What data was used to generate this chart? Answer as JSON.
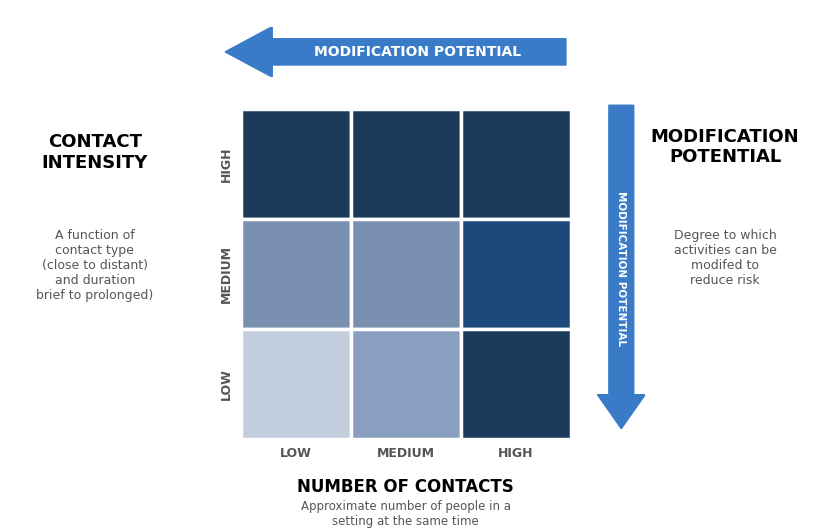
{
  "grid_colors": [
    [
      "#1b3a5c",
      "#1b3a5c",
      "#1b3a5c"
    ],
    [
      "#7a90b0",
      "#7a90b0",
      "#1b4a7a"
    ],
    [
      "#c2cede",
      "#8a9fc0",
      "#1b3a5c"
    ]
  ],
  "row_labels": [
    "HIGH",
    "MEDIUM",
    "LOW"
  ],
  "col_labels": [
    "LOW",
    "MEDIUM",
    "HIGH"
  ],
  "x_axis_title": "NUMBER OF CONTACTS",
  "x_axis_subtitle": "Approximate number of people in a\nsetting at the same time",
  "left_title": "CONTACT\nINTENSITY",
  "left_subtitle": "A function of\ncontact type\n(close to distant)\nand duration\nbrief to prolonged)",
  "top_arrow_label": "MODIFICATION POTENTIAL",
  "right_arrow_label": "MODIFICATION POTENTIAL",
  "right_title": "MODIFICATION\nPOTENTIAL",
  "right_subtitle": "Degree to which\nactivities can be\nmodifed to\nreduce risk",
  "arrow_color": "#3a7bc8",
  "bg_color": "#ffffff",
  "grid_line_color": "#ffffff"
}
